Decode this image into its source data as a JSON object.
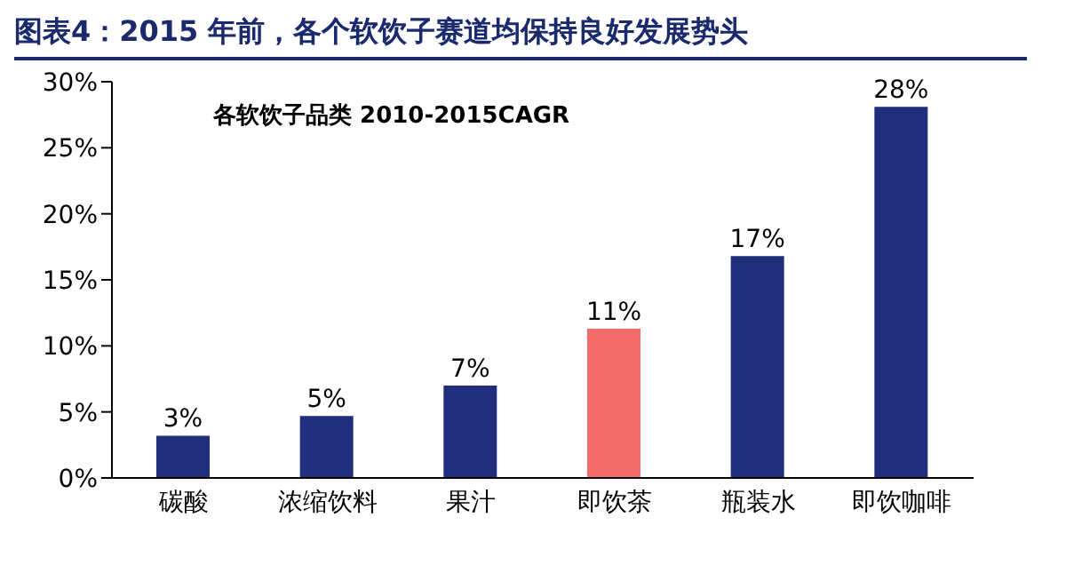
{
  "chart_data": {
    "type": "bar",
    "title": "图表4：2015 年前，各个软饮子赛道均保持良好发展势头",
    "subtitle": "各软饮子品类 2010-2015CAGR",
    "categories": [
      "碳酸",
      "浓缩饮料",
      "果汁",
      "即饮茶",
      "瓶装水",
      "即饮咖啡"
    ],
    "values": [
      3.2,
      4.7,
      7.0,
      11.3,
      16.8,
      28.1
    ],
    "colors": [
      "#1f2f7d",
      "#1f2f7d",
      "#1f2f7d",
      "#f26b6b",
      "#1f2f7d",
      "#1f2f7d"
    ],
    "value_labels": [
      "3%",
      "5%",
      "7%",
      "11%",
      "17%",
      "28%"
    ],
    "ylim": [
      0,
      30
    ],
    "yticks": [
      {
        "value": 0,
        "label": "0%"
      },
      {
        "value": 5,
        "label": "5%"
      },
      {
        "value": 10,
        "label": "10%"
      },
      {
        "value": 15,
        "label": "15%"
      },
      {
        "value": 20,
        "label": "20%"
      },
      {
        "value": 25,
        "label": "25%"
      },
      {
        "value": 30,
        "label": "30%"
      }
    ],
    "grid": false,
    "legend": false
  }
}
